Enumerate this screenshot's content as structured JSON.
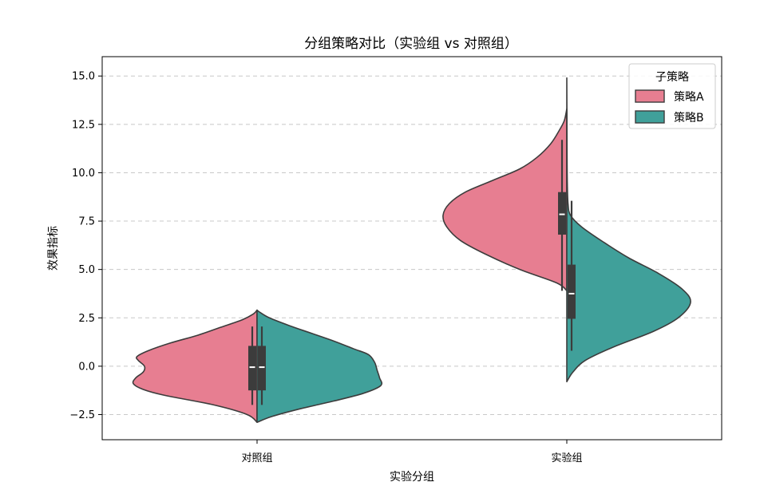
{
  "chart_data": {
    "type": "violin",
    "split": true,
    "title": "分组策略对比（实验组 vs 对照组）",
    "xlabel": "实验分组",
    "ylabel": "效果指标",
    "categories": [
      "对照组",
      "实验组"
    ],
    "ylim": [
      -3.8,
      16.0
    ],
    "yticks": [
      -2.5,
      0.0,
      2.5,
      5.0,
      7.5,
      10.0,
      12.5,
      15.0
    ],
    "ytick_labels": [
      "−2.5",
      "0.0",
      "2.5",
      "5.0",
      "7.5",
      "10.0",
      "12.5",
      "15.0"
    ],
    "grid": "y-dashed",
    "legend": {
      "title": "子策略",
      "placement": "top-right"
    },
    "series": [
      {
        "name": "策略A",
        "color": "#e77e91",
        "side": "left",
        "groups": [
          {
            "category": "对照组",
            "profile": [
              [
                -2.9,
                0.0
              ],
              [
                -2.5,
                0.08
              ],
              [
                -2.0,
                0.35
              ],
              [
                -1.5,
                0.75
              ],
              [
                -1.2,
                0.92
              ],
              [
                -0.9,
                1.0
              ],
              [
                -0.6,
                0.98
              ],
              [
                -0.3,
                0.92
              ],
              [
                0.0,
                0.91
              ],
              [
                0.3,
                0.96
              ],
              [
                0.5,
                0.97
              ],
              [
                0.8,
                0.88
              ],
              [
                1.2,
                0.7
              ],
              [
                1.6,
                0.48
              ],
              [
                2.0,
                0.3
              ],
              [
                2.4,
                0.12
              ],
              [
                2.7,
                0.03
              ],
              [
                2.9,
                0.0
              ]
            ],
            "box": {
              "whisker_low": -2.0,
              "q1": -1.25,
              "median": -0.05,
              "q3": 1.05,
              "whisker_high": 2.05
            }
          },
          {
            "category": "实验组",
            "profile": [
              [
                3.9,
                0.0
              ],
              [
                4.3,
                0.08
              ],
              [
                5.0,
                0.38
              ],
              [
                5.8,
                0.66
              ],
              [
                6.5,
                0.86
              ],
              [
                7.2,
                0.97
              ],
              [
                7.8,
                1.0
              ],
              [
                8.4,
                0.95
              ],
              [
                9.0,
                0.82
              ],
              [
                9.6,
                0.6
              ],
              [
                10.2,
                0.38
              ],
              [
                10.8,
                0.24
              ],
              [
                11.5,
                0.13
              ],
              [
                12.2,
                0.06
              ],
              [
                12.7,
                0.02
              ],
              [
                13.3,
                0.0
              ]
            ],
            "box": {
              "whisker_low": 3.9,
              "q1": 6.8,
              "median": 7.85,
              "q3": 9.0,
              "whisker_high": 11.7
            }
          }
        ]
      },
      {
        "name": "策略B",
        "color": "#40a09a",
        "side": "right",
        "groups": [
          {
            "category": "对照组",
            "profile": [
              [
                -2.9,
                0.0
              ],
              [
                -2.6,
                0.12
              ],
              [
                -2.2,
                0.35
              ],
              [
                -1.8,
                0.62
              ],
              [
                -1.4,
                0.86
              ],
              [
                -1.0,
                1.0
              ],
              [
                -0.6,
                0.99
              ],
              [
                -0.2,
                0.97
              ],
              [
                0.2,
                0.95
              ],
              [
                0.6,
                0.9
              ],
              [
                0.9,
                0.78
              ],
              [
                1.3,
                0.62
              ],
              [
                1.7,
                0.44
              ],
              [
                2.1,
                0.26
              ],
              [
                2.5,
                0.1
              ],
              [
                2.8,
                0.02
              ],
              [
                2.9,
                0.0
              ]
            ],
            "box": {
              "whisker_low": -2.0,
              "q1": -1.25,
              "median": -0.05,
              "q3": 1.05,
              "whisker_high": 2.05
            }
          },
          {
            "category": "实验组",
            "profile": [
              [
                -0.8,
                0.0
              ],
              [
                -0.3,
                0.05
              ],
              [
                0.3,
                0.15
              ],
              [
                1.0,
                0.38
              ],
              [
                1.8,
                0.7
              ],
              [
                2.5,
                0.9
              ],
              [
                3.3,
                1.0
              ],
              [
                4.0,
                0.93
              ],
              [
                4.8,
                0.74
              ],
              [
                5.6,
                0.5
              ],
              [
                6.4,
                0.3
              ],
              [
                7.2,
                0.12
              ],
              [
                7.8,
                0.03
              ],
              [
                8.4,
                0.01
              ],
              [
                9.5,
                0.004
              ],
              [
                11.0,
                0.002
              ],
              [
                13.0,
                0.001
              ],
              [
                14.9,
                0.0
              ]
            ],
            "box": {
              "whisker_low": 0.8,
              "q1": 2.45,
              "median": 3.75,
              "q3": 5.25,
              "whisker_high": 8.55
            }
          }
        ]
      }
    ]
  }
}
